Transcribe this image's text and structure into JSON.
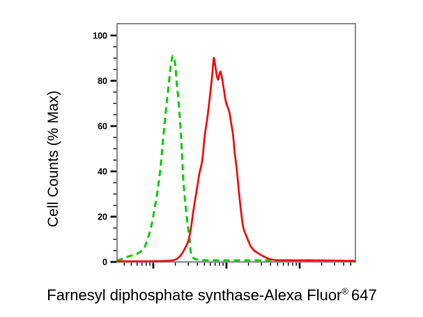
{
  "figure": {
    "background_color": "#ffffff",
    "y_axis": {
      "label": "Cell Counts (% Max)",
      "tick_values": [
        100,
        80,
        60,
        40,
        20,
        0
      ],
      "minor_tick_step": 5
    },
    "x_axis": {
      "scale": "log10",
      "tick_labels": []
    },
    "caption": {
      "main": "Farnesyl diphosphate synthase-Alexa Fluor",
      "registered_symbol": "®",
      "suffix": "647"
    },
    "colors": {
      "frame": "#8a8a8a",
      "tick": "#0d0d0d",
      "text": "#000000",
      "green_curve": "#00cc00",
      "red_curve": "#f01212"
    },
    "chart_data": {
      "type": "line",
      "subtype": "flow-cytometry-histogram-overlay",
      "title": "",
      "xlabel": "Farnesyl diphosphate synthase-Alexa Fluor® 647",
      "ylabel": "Cell Counts (% Max)",
      "x_scale": "log",
      "xlim_log10": [
        0.505,
        3.762
      ],
      "ylim": [
        0,
        105.2
      ],
      "x_major_ticks_log10": [
        1,
        2,
        3
      ],
      "x_decades": [
        0,
        1,
        2,
        3
      ],
      "y_major_ticks": [
        0,
        20,
        40,
        60,
        80,
        100
      ],
      "grid": false,
      "legend": "none",
      "series": [
        {
          "name": "green-dashed-histogram",
          "line_style": "dashed",
          "color": "#00cc00",
          "stroke_width": 3,
          "dash_pattern": "9 6",
          "peak": {
            "x_log10": 1.27,
            "y_percent": 91
          },
          "points": [
            [
              0.5,
              0.6
            ],
            [
              0.57,
              1.3
            ],
            [
              0.65,
              2.3
            ],
            [
              0.72,
              3.0
            ],
            [
              0.79,
              3.8
            ],
            [
              0.86,
              5.5
            ],
            [
              0.9,
              8
            ],
            [
              0.94,
              12
            ],
            [
              0.98,
              17
            ],
            [
              1.02,
              24
            ],
            [
              1.06,
              32
            ],
            [
              1.1,
              42
            ],
            [
              1.13,
              53
            ],
            [
              1.17,
              66
            ],
            [
              1.21,
              78
            ],
            [
              1.24,
              87
            ],
            [
              1.27,
              91
            ],
            [
              1.3,
              87
            ],
            [
              1.32,
              79
            ],
            [
              1.35,
              69
            ],
            [
              1.38,
              55
            ],
            [
              1.4,
              42
            ],
            [
              1.42,
              32
            ],
            [
              1.44,
              25
            ],
            [
              1.46,
              19
            ],
            [
              1.48,
              14
            ],
            [
              1.5,
              9
            ],
            [
              1.51,
              5
            ],
            [
              1.53,
              2.5
            ],
            [
              1.58,
              1.2
            ],
            [
              1.69,
              0.8
            ],
            [
              1.95,
              0.7
            ],
            [
              2.33,
              0.7
            ],
            [
              2.71,
              0.7
            ],
            [
              3.1,
              0.7
            ],
            [
              3.48,
              0.6
            ],
            [
              3.76,
              0.5
            ]
          ]
        },
        {
          "name": "red-solid-histogram",
          "line_style": "solid",
          "color": "#f01212",
          "stroke_width": 2.8,
          "dash_pattern": "",
          "peak": {
            "x_log10": 1.83,
            "y_percent": 90
          },
          "points": [
            [
              0.5,
              0.3
            ],
            [
              0.9,
              0.3
            ],
            [
              1.19,
              0.5
            ],
            [
              1.29,
              0.9
            ],
            [
              1.34,
              1.8
            ],
            [
              1.39,
              3.6
            ],
            [
              1.44,
              6.5
            ],
            [
              1.48,
              9.5
            ],
            [
              1.51,
              14
            ],
            [
              1.55,
              23
            ],
            [
              1.59,
              31
            ],
            [
              1.63,
              39
            ],
            [
              1.67,
              45
            ],
            [
              1.7,
              55
            ],
            [
              1.74,
              64
            ],
            [
              1.77,
              72
            ],
            [
              1.8,
              81
            ],
            [
              1.82,
              88
            ],
            [
              1.83,
              90
            ],
            [
              1.85,
              86
            ],
            [
              1.87,
              82
            ],
            [
              1.89,
              80.5
            ],
            [
              1.9,
              82.5
            ],
            [
              1.92,
              84
            ],
            [
              1.94,
              81
            ],
            [
              1.96,
              77
            ],
            [
              1.99,
              71
            ],
            [
              2.02,
              68
            ],
            [
              2.04,
              66
            ],
            [
              2.06,
              62
            ],
            [
              2.09,
              56
            ],
            [
              2.11,
              49
            ],
            [
              2.14,
              41
            ],
            [
              2.17,
              31
            ],
            [
              2.2,
              22
            ],
            [
              2.22,
              17
            ],
            [
              2.24,
              14
            ],
            [
              2.29,
              10
            ],
            [
              2.33,
              7
            ],
            [
              2.38,
              5
            ],
            [
              2.45,
              3.5
            ],
            [
              2.52,
              2.2
            ],
            [
              2.59,
              1.3
            ],
            [
              2.65,
              0.9
            ],
            [
              2.76,
              0.7
            ],
            [
              3.1,
              0.7
            ],
            [
              3.43,
              0.6
            ],
            [
              3.76,
              0.4
            ]
          ]
        }
      ]
    }
  }
}
